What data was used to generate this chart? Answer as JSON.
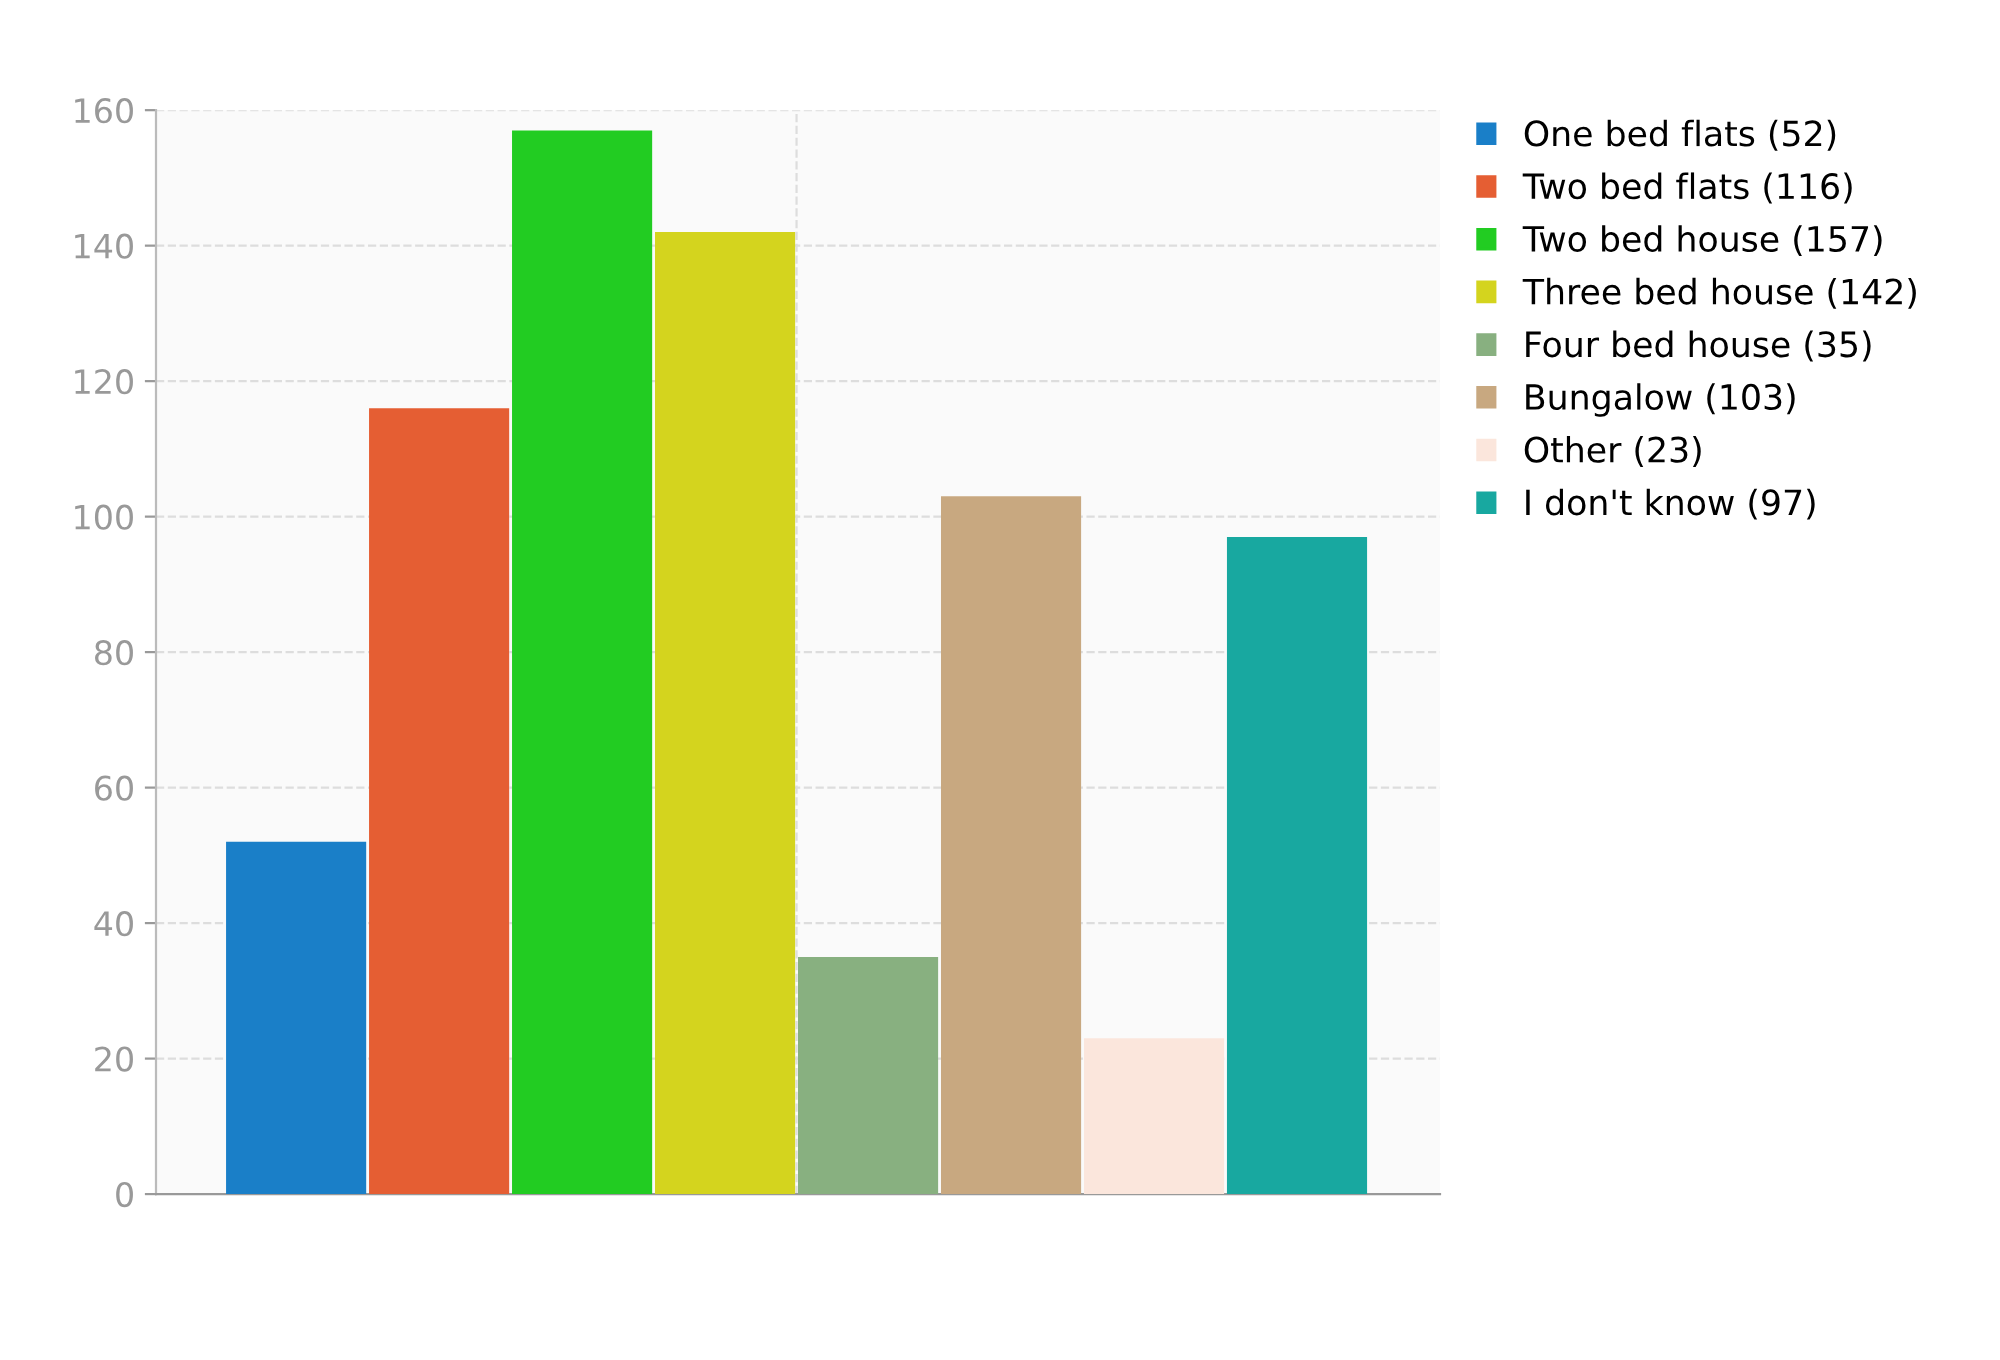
{
  "chart_data": {
    "type": "bar",
    "categories": [
      null
    ],
    "series": [
      {
        "name": "One bed flats (52)",
        "color": "#1a7fc8",
        "values": [
          52
        ]
      },
      {
        "name": "Two bed flats (116)",
        "color": "#e55e33",
        "values": [
          116
        ]
      },
      {
        "name": "Two bed house (157)",
        "color": "#22cc22",
        "values": [
          157
        ]
      },
      {
        "name": "Three bed house (142)",
        "color": "#d4d41e",
        "values": [
          142
        ]
      },
      {
        "name": "Four bed house (35)",
        "color": "#88b080",
        "values": [
          35
        ]
      },
      {
        "name": "Bungalow (103)",
        "color": "#c8a880",
        "values": [
          103
        ]
      },
      {
        "name": "Other (23)",
        "color": "#fbe6dc",
        "values": [
          23
        ]
      },
      {
        "name": "I don't know (97)",
        "color": "#18a8a0",
        "values": [
          97
        ]
      }
    ],
    "ylim": [
      0,
      160
    ],
    "yticks": [
      0,
      20,
      40,
      60,
      80,
      100,
      120,
      140,
      160
    ],
    "grid": true,
    "legend": "top right",
    "tick_labels": "y"
  }
}
